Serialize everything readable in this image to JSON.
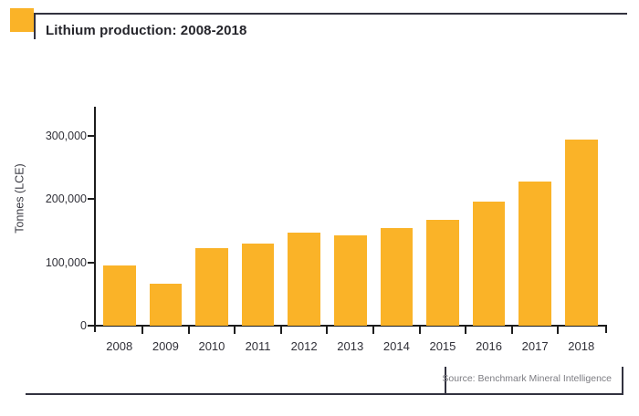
{
  "header": {
    "title": "Lithium production: 2008-2018"
  },
  "footer": {
    "source": "Source: Benchmark Mineral Intelligence"
  },
  "branding": {
    "logo_color": "#FAB328"
  },
  "chart_data": {
    "type": "bar",
    "title": "Lithium production: 2008-2018",
    "xlabel": "",
    "ylabel": "Tonnes (LCE)",
    "categories": [
      "2008",
      "2009",
      "2010",
      "2011",
      "2012",
      "2013",
      "2014",
      "2015",
      "2016",
      "2017",
      "2018"
    ],
    "values": [
      95000,
      66000,
      122000,
      130000,
      147000,
      142000,
      154000,
      167000,
      196000,
      227000,
      294000
    ],
    "yticks": [
      {
        "value": 0,
        "label": "0"
      },
      {
        "value": 100000,
        "label": "100,000"
      },
      {
        "value": 200000,
        "label": "200,000"
      },
      {
        "value": 300000,
        "label": "300,000"
      }
    ],
    "ylim": [
      0,
      345000
    ],
    "grid": false,
    "legend": null,
    "bar_color": "#FAB328",
    "source": "Source: Benchmark Mineral Intelligence"
  }
}
